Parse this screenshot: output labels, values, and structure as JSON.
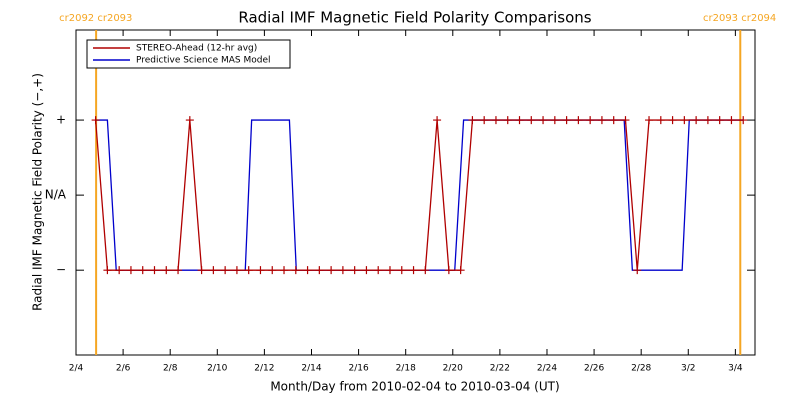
{
  "chart_data": {
    "type": "line",
    "title": "Radial IMF Magnetic Field Polarity Comparisons",
    "xlabel": "Month/Day from 2010-02-04 to 2010-03-04 (UT)",
    "ylabel": "Radial IMF Magnetic Field Polarity (−,+)",
    "xlim": [
      "2010-02-04T00:00",
      "2010-03-04T20:00"
    ],
    "ylim": [
      -2.13,
      2.2
    ],
    "xticks": [
      {
        "value": "2010-02-04T00:00",
        "label": "2/4"
      },
      {
        "value": "2010-02-06T00:00",
        "label": "2/6"
      },
      {
        "value": "2010-02-08T00:00",
        "label": "2/8"
      },
      {
        "value": "2010-02-10T00:00",
        "label": "2/10"
      },
      {
        "value": "2010-02-12T00:00",
        "label": "2/12"
      },
      {
        "value": "2010-02-14T00:00",
        "label": "2/14"
      },
      {
        "value": "2010-02-16T00:00",
        "label": "2/16"
      },
      {
        "value": "2010-02-18T00:00",
        "label": "2/18"
      },
      {
        "value": "2010-02-20T00:00",
        "label": "2/20"
      },
      {
        "value": "2010-02-22T00:00",
        "label": "2/22"
      },
      {
        "value": "2010-02-24T00:00",
        "label": "2/24"
      },
      {
        "value": "2010-02-26T00:00",
        "label": "2/26"
      },
      {
        "value": "2010-02-28T00:00",
        "label": "2/28"
      },
      {
        "value": "2010-03-02T00:00",
        "label": "3/2"
      },
      {
        "value": "2010-03-04T00:00",
        "label": "3/4"
      }
    ],
    "yticks": [
      {
        "value": 1,
        "label": "+"
      },
      {
        "value": 0,
        "label": "N/A"
      },
      {
        "value": -1,
        "label": "−"
      }
    ],
    "legend": "upper left",
    "series": [
      {
        "name": "STEREO-Ahead (12-hr avg)",
        "color": "#b00000",
        "marker": "+",
        "x": [
          "2010-02-04T20:00",
          "2010-02-05T08:00",
          "2010-02-05T20:00",
          "2010-02-06T08:00",
          "2010-02-06T20:00",
          "2010-02-07T08:00",
          "2010-02-07T20:00",
          "2010-02-08T08:00",
          "2010-02-08T20:00",
          "2010-02-09T08:00",
          "2010-02-09T20:00",
          "2010-02-10T08:00",
          "2010-02-10T20:00",
          "2010-02-11T08:00",
          "2010-02-11T20:00",
          "2010-02-12T08:00",
          "2010-02-12T20:00",
          "2010-02-13T08:00",
          "2010-02-13T20:00",
          "2010-02-14T08:00",
          "2010-02-14T20:00",
          "2010-02-15T08:00",
          "2010-02-15T20:00",
          "2010-02-16T08:00",
          "2010-02-16T20:00",
          "2010-02-17T08:00",
          "2010-02-17T20:00",
          "2010-02-18T08:00",
          "2010-02-18T20:00",
          "2010-02-19T08:00",
          "2010-02-19T20:00",
          "2010-02-20T08:00",
          "2010-02-20T20:00",
          "2010-02-21T08:00",
          "2010-02-21T20:00",
          "2010-02-22T08:00",
          "2010-02-22T20:00",
          "2010-02-23T08:00",
          "2010-02-23T20:00",
          "2010-02-24T08:00",
          "2010-02-24T20:00",
          "2010-02-25T08:00",
          "2010-02-25T20:00",
          "2010-02-26T08:00",
          "2010-02-26T20:00",
          "2010-02-27T08:00",
          "2010-02-27T20:00",
          "2010-02-28T08:00",
          "2010-02-28T20:00",
          "2010-03-01T08:00",
          "2010-03-01T20:00",
          "2010-03-02T08:00",
          "2010-03-02T20:00",
          "2010-03-03T08:00",
          "2010-03-03T20:00",
          "2010-03-04T08:00"
        ],
        "values": [
          1,
          -1,
          -1,
          -1,
          -1,
          -1,
          -1,
          -1,
          1,
          -1,
          -1,
          -1,
          -1,
          -1,
          -1,
          -1,
          -1,
          -1,
          -1,
          -1,
          -1,
          -1,
          -1,
          -1,
          -1,
          -1,
          -1,
          -1,
          -1,
          1,
          -1,
          -1,
          1,
          1,
          1,
          1,
          1,
          1,
          1,
          1,
          1,
          1,
          1,
          1,
          1,
          1,
          -1,
          1,
          1,
          1,
          1,
          1,
          1,
          1,
          1,
          1
        ]
      },
      {
        "name": "Predictive Science MAS Model",
        "color": "#0000cc",
        "x": [
          "2010-02-04T20:00",
          "2010-02-05T08:00",
          "2010-02-05T17:00",
          "2010-02-11T04:30",
          "2010-02-11T11:00",
          "2010-02-13T01:30",
          "2010-02-13T08:30",
          "2010-02-20T02:00",
          "2010-02-20T11:00",
          "2010-02-27T06:40",
          "2010-02-27T15:00",
          "2010-03-01T17:45",
          "2010-03-02T01:00",
          "2010-03-04T08:00"
        ],
        "values": [
          1,
          1,
          -1,
          -1,
          1,
          1,
          -1,
          -1,
          1,
          1,
          -1,
          -1,
          1,
          1
        ]
      }
    ],
    "annotations": [
      {
        "x": "2010-02-04T20:30",
        "label": "cr2092 cr2093",
        "color": "#f5a623"
      },
      {
        "x": "2010-03-04T05:00",
        "label": "cr2093 cr2094",
        "color": "#f5a623"
      }
    ]
  }
}
